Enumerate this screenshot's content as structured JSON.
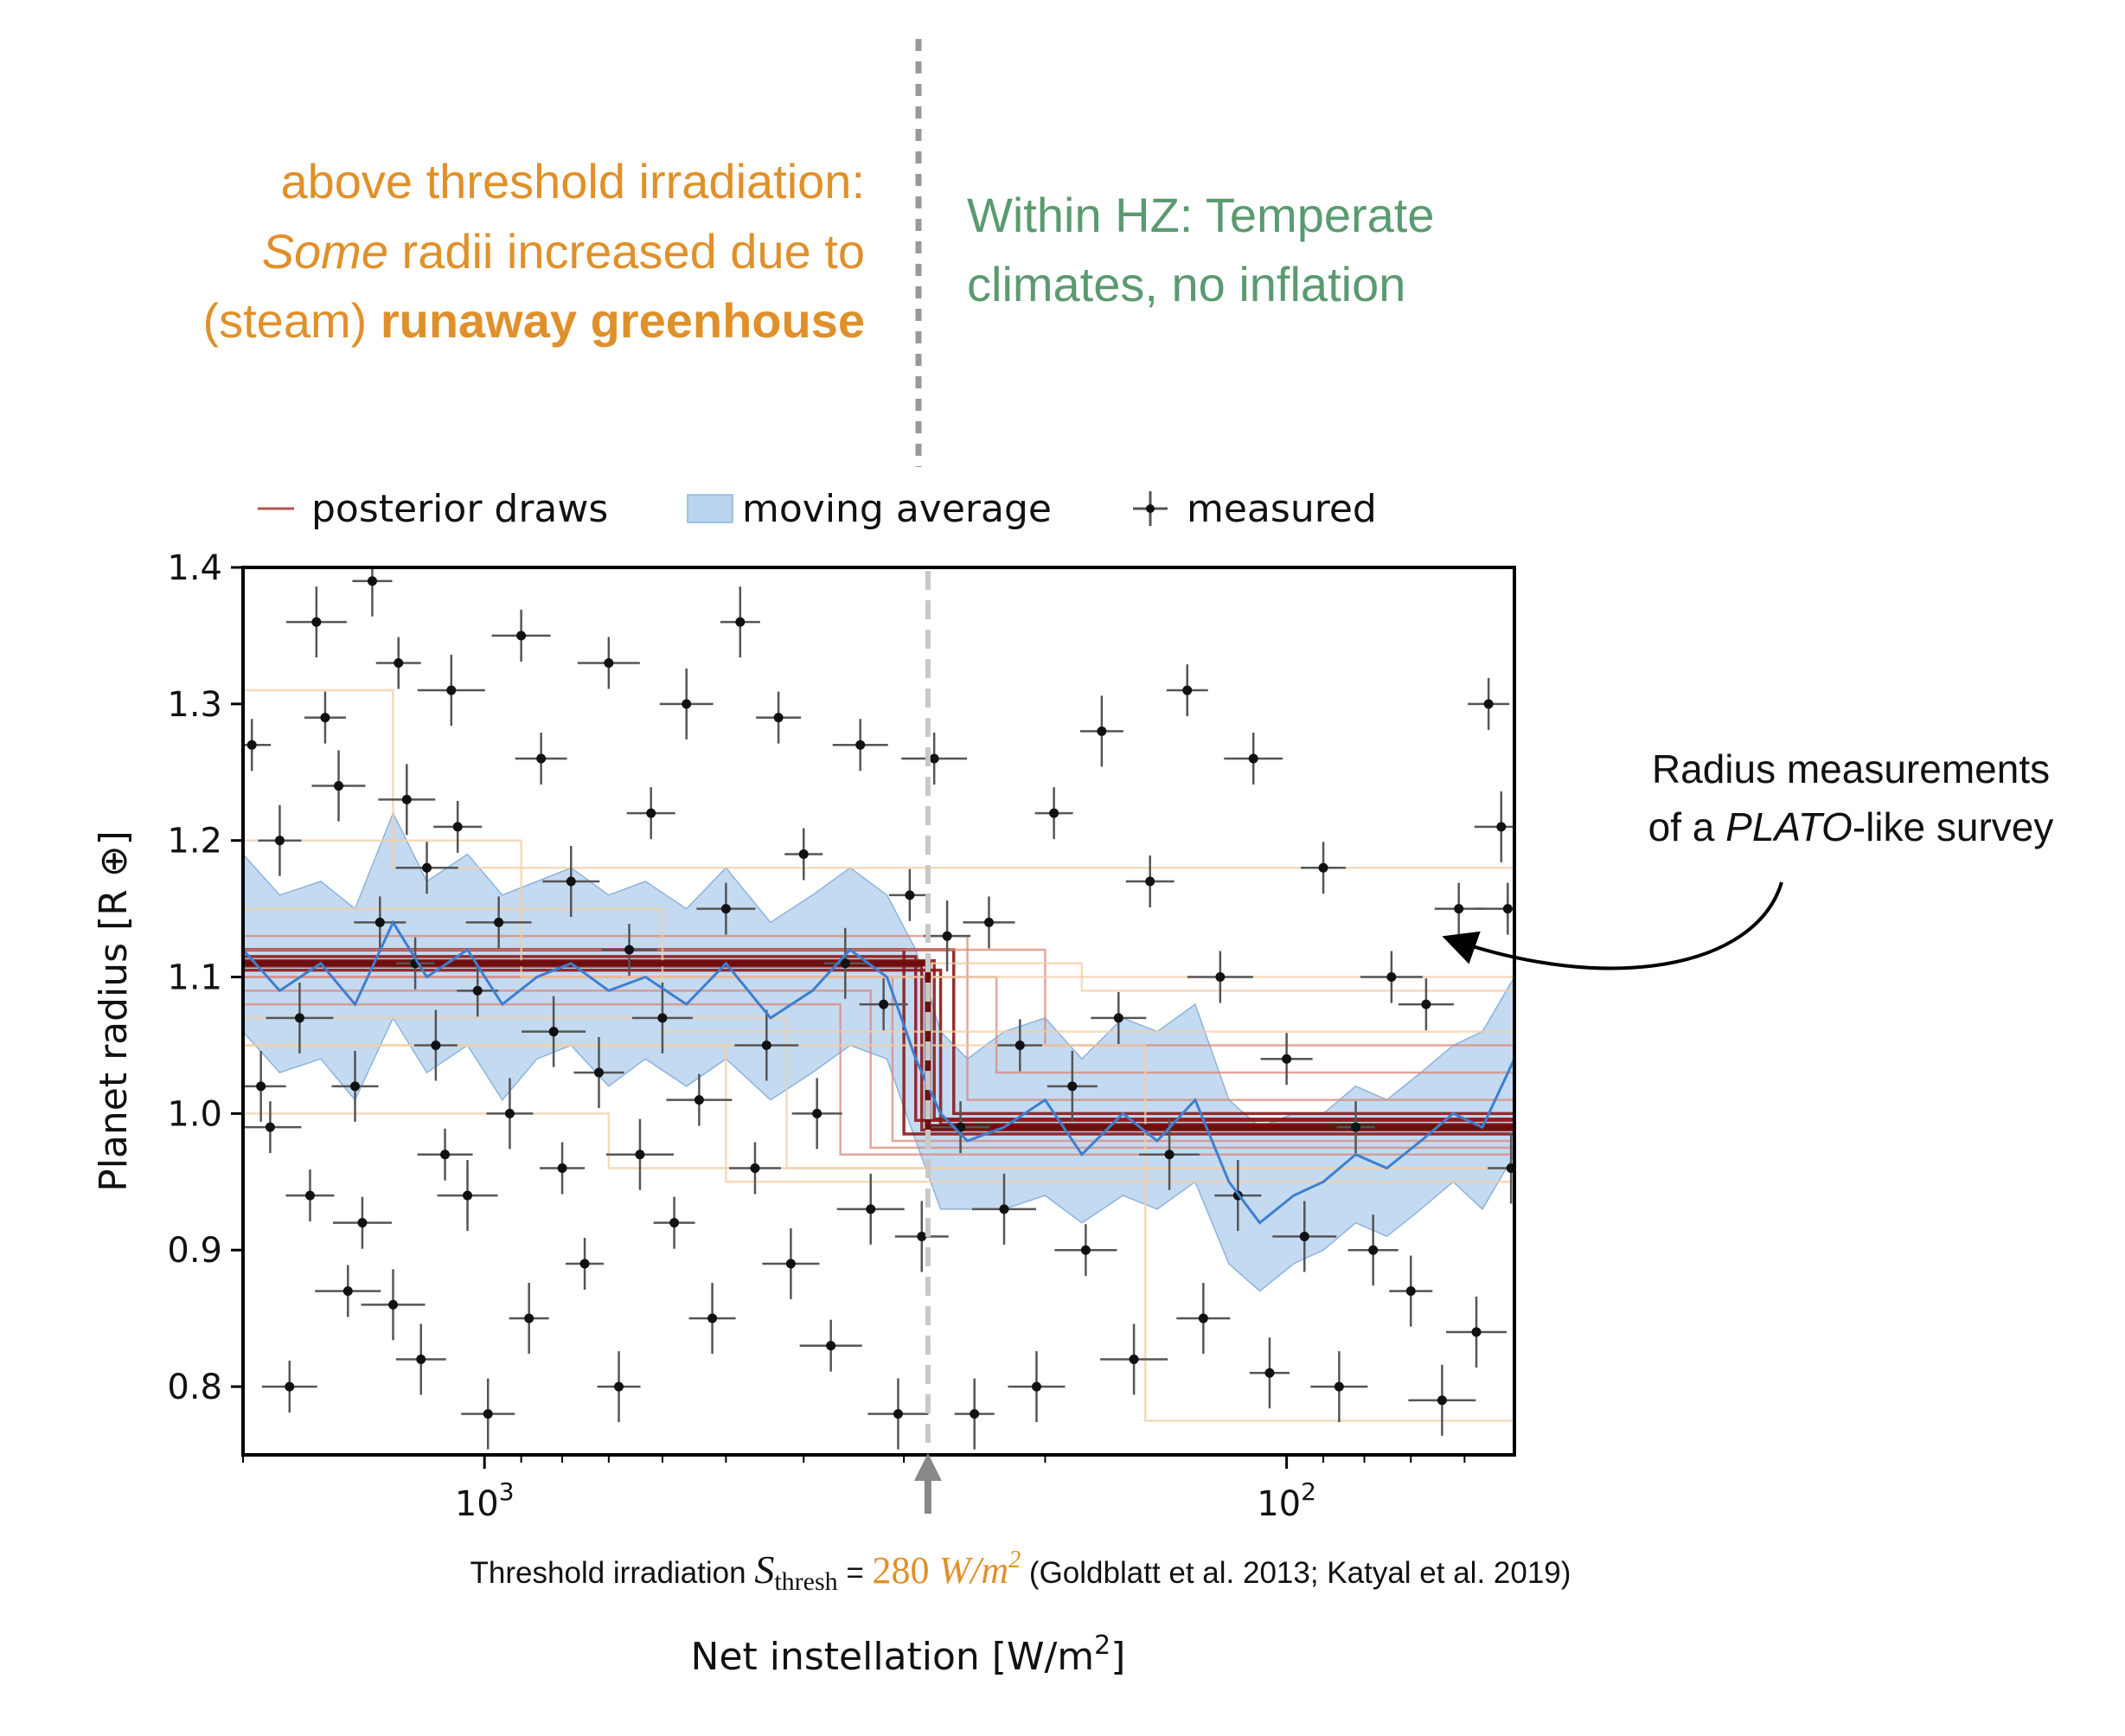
{
  "annotations": {
    "left_line1": "above threshold irradiation:",
    "left_line2_em": "Some",
    "left_line2_rest": " radii increased due to",
    "left_line3_plain": "(steam) ",
    "left_line3_bold": "runaway greenhouse",
    "right_line1": "Within HZ: Temperate",
    "right_line2": "climates, no inflation",
    "callout_line1": "Radius measurements",
    "callout_line2_pre": "of a ",
    "callout_line2_em": "PLATO",
    "callout_line2_post": "-like survey",
    "threshold_pre": "Threshold irradiation ",
    "threshold_symbol": "S",
    "threshold_sub": "thresh",
    "threshold_eq": " = ",
    "threshold_value": "280",
    "threshold_unit": " W/m",
    "threshold_unit_sup": "2",
    "threshold_refs": " (Goldblatt et al. 2013; Katyal et al. 2019)",
    "orange": "#e0902a",
    "green": "#5b9a70"
  },
  "chart_data": {
    "type": "scatter",
    "title": "",
    "xlabel": "Net instellation [W/m²]",
    "xlabel_pre": "Net instellation [W/m",
    "xlabel_sup": "2",
    "xlabel_post": "]",
    "ylabel": "Planet radius [R ⊕]",
    "x_scale": "log",
    "x_reversed": true,
    "xlim": [
      2000,
      52
    ],
    "ylim": [
      0.75,
      1.4
    ],
    "x_ticks": [
      {
        "value": 1000,
        "base": "10",
        "exp": "3"
      },
      {
        "value": 100,
        "base": "10",
        "exp": "2"
      }
    ],
    "y_ticks": [
      0.8,
      0.9,
      1.0,
      1.1,
      1.2,
      1.3,
      1.4
    ],
    "y_tick_labels": [
      "0.8",
      "0.9",
      "1.0",
      "1.1",
      "1.2",
      "1.3",
      "1.4"
    ],
    "threshold_x": 280,
    "hz_divider_x": 280,
    "legend": {
      "placement": "top",
      "entries": [
        "posterior draws",
        "moving average",
        "measured"
      ]
    },
    "step_model": {
      "x_threshold": 280,
      "radius_above": 1.11,
      "radius_below": 0.99
    },
    "posterior_draws": [
      {
        "threshold": 300,
        "high": 1.12,
        "low": 0.985
      },
      {
        "threshold": 280,
        "high": 1.11,
        "low": 0.99
      },
      {
        "threshold": 290,
        "high": 1.115,
        "low": 0.995
      },
      {
        "threshold": 270,
        "high": 1.105,
        "low": 0.992
      },
      {
        "threshold": 285,
        "high": 1.108,
        "low": 0.988
      },
      {
        "threshold": 275,
        "high": 1.112,
        "low": 0.996
      },
      {
        "threshold": 310,
        "high": 1.1,
        "low": 0.98
      },
      {
        "threshold": 260,
        "high": 1.12,
        "low": 1.0
      },
      {
        "threshold": 330,
        "high": 1.09,
        "low": 0.975
      },
      {
        "threshold": 250,
        "high": 1.13,
        "low": 1.01
      },
      {
        "threshold": 360,
        "high": 1.08,
        "low": 0.97
      },
      {
        "threshold": 230,
        "high": 1.1,
        "low": 1.03
      },
      {
        "threshold": 200,
        "high": 1.12,
        "low": 1.05
      },
      {
        "threshold": 420,
        "high": 1.07,
        "low": 0.96
      },
      {
        "threshold": 180,
        "high": 1.11,
        "low": 1.09
      },
      {
        "threshold": 600,
        "high": 1.15,
        "low": 1.06
      },
      {
        "threshold": 900,
        "high": 1.2,
        "low": 1.1
      },
      {
        "threshold": 1300,
        "high": 1.31,
        "low": 1.18
      },
      {
        "threshold": 500,
        "high": 1.05,
        "low": 0.95
      },
      {
        "threshold": 150,
        "high": 1.05,
        "low": 0.775
      },
      {
        "threshold": 700,
        "high": 1.0,
        "low": 0.96
      }
    ],
    "moving_average": [
      {
        "x": 2000,
        "y": 1.12,
        "lo": 1.06,
        "hi": 1.19
      },
      {
        "x": 1800,
        "y": 1.09,
        "lo": 1.03,
        "hi": 1.16
      },
      {
        "x": 1600,
        "y": 1.11,
        "lo": 1.04,
        "hi": 1.17
      },
      {
        "x": 1450,
        "y": 1.08,
        "lo": 1.01,
        "hi": 1.15
      },
      {
        "x": 1300,
        "y": 1.14,
        "lo": 1.07,
        "hi": 1.22
      },
      {
        "x": 1180,
        "y": 1.1,
        "lo": 1.03,
        "hi": 1.17
      },
      {
        "x": 1050,
        "y": 1.12,
        "lo": 1.05,
        "hi": 1.19
      },
      {
        "x": 950,
        "y": 1.08,
        "lo": 1.01,
        "hi": 1.16
      },
      {
        "x": 860,
        "y": 1.1,
        "lo": 1.04,
        "hi": 1.17
      },
      {
        "x": 780,
        "y": 1.11,
        "lo": 1.05,
        "hi": 1.18
      },
      {
        "x": 700,
        "y": 1.09,
        "lo": 1.02,
        "hi": 1.16
      },
      {
        "x": 630,
        "y": 1.1,
        "lo": 1.04,
        "hi": 1.17
      },
      {
        "x": 560,
        "y": 1.08,
        "lo": 1.02,
        "hi": 1.15
      },
      {
        "x": 500,
        "y": 1.11,
        "lo": 1.04,
        "hi": 1.18
      },
      {
        "x": 440,
        "y": 1.07,
        "lo": 1.01,
        "hi": 1.14
      },
      {
        "x": 390,
        "y": 1.09,
        "lo": 1.03,
        "hi": 1.16
      },
      {
        "x": 350,
        "y": 1.12,
        "lo": 1.05,
        "hi": 1.18
      },
      {
        "x": 315,
        "y": 1.1,
        "lo": 1.04,
        "hi": 1.16
      },
      {
        "x": 290,
        "y": 1.04,
        "lo": 0.98,
        "hi": 1.12
      },
      {
        "x": 270,
        "y": 1.0,
        "lo": 0.93,
        "hi": 1.06
      },
      {
        "x": 250,
        "y": 0.98,
        "lo": 0.93,
        "hi": 1.04
      },
      {
        "x": 225,
        "y": 0.99,
        "lo": 0.93,
        "hi": 1.06
      },
      {
        "x": 200,
        "y": 1.01,
        "lo": 0.94,
        "hi": 1.07
      },
      {
        "x": 180,
        "y": 0.97,
        "lo": 0.92,
        "hi": 1.04
      },
      {
        "x": 160,
        "y": 1.0,
        "lo": 0.94,
        "hi": 1.07
      },
      {
        "x": 145,
        "y": 0.98,
        "lo": 0.93,
        "hi": 1.06
      },
      {
        "x": 130,
        "y": 1.01,
        "lo": 0.95,
        "hi": 1.08
      },
      {
        "x": 118,
        "y": 0.95,
        "lo": 0.89,
        "hi": 1.01
      },
      {
        "x": 108,
        "y": 0.92,
        "lo": 0.87,
        "hi": 0.99
      },
      {
        "x": 98,
        "y": 0.94,
        "lo": 0.89,
        "hi": 1.0
      },
      {
        "x": 90,
        "y": 0.95,
        "lo": 0.9,
        "hi": 1.0
      },
      {
        "x": 82,
        "y": 0.97,
        "lo": 0.92,
        "hi": 1.02
      },
      {
        "x": 75,
        "y": 0.96,
        "lo": 0.91,
        "hi": 1.01
      },
      {
        "x": 68,
        "y": 0.98,
        "lo": 0.93,
        "hi": 1.03
      },
      {
        "x": 62,
        "y": 1.0,
        "lo": 0.95,
        "hi": 1.05
      },
      {
        "x": 57,
        "y": 0.99,
        "lo": 0.93,
        "hi": 1.06
      },
      {
        "x": 52,
        "y": 1.04,
        "lo": 0.97,
        "hi": 1.1
      }
    ],
    "measured": [
      {
        "x": 1950,
        "y": 1.27
      },
      {
        "x": 1900,
        "y": 1.02
      },
      {
        "x": 1850,
        "y": 0.99
      },
      {
        "x": 1800,
        "y": 1.2
      },
      {
        "x": 1750,
        "y": 0.8
      },
      {
        "x": 1700,
        "y": 1.07
      },
      {
        "x": 1650,
        "y": 0.94
      },
      {
        "x": 1620,
        "y": 1.36
      },
      {
        "x": 1580,
        "y": 1.29
      },
      {
        "x": 1520,
        "y": 1.24
      },
      {
        "x": 1480,
        "y": 0.87
      },
      {
        "x": 1450,
        "y": 1.02
      },
      {
        "x": 1420,
        "y": 0.92
      },
      {
        "x": 1380,
        "y": 1.39
      },
      {
        "x": 1350,
        "y": 1.14
      },
      {
        "x": 1300,
        "y": 0.86
      },
      {
        "x": 1280,
        "y": 1.33
      },
      {
        "x": 1250,
        "y": 1.23
      },
      {
        "x": 1220,
        "y": 1.11
      },
      {
        "x": 1200,
        "y": 0.82
      },
      {
        "x": 1180,
        "y": 1.18
      },
      {
        "x": 1150,
        "y": 1.05
      },
      {
        "x": 1120,
        "y": 0.97
      },
      {
        "x": 1100,
        "y": 1.31
      },
      {
        "x": 1080,
        "y": 1.21
      },
      {
        "x": 1050,
        "y": 0.94
      },
      {
        "x": 1020,
        "y": 1.09
      },
      {
        "x": 990,
        "y": 0.78
      },
      {
        "x": 960,
        "y": 1.14
      },
      {
        "x": 930,
        "y": 1.0
      },
      {
        "x": 900,
        "y": 1.35
      },
      {
        "x": 880,
        "y": 0.85
      },
      {
        "x": 850,
        "y": 1.26
      },
      {
        "x": 820,
        "y": 1.06
      },
      {
        "x": 800,
        "y": 0.96
      },
      {
        "x": 780,
        "y": 1.17
      },
      {
        "x": 750,
        "y": 0.89
      },
      {
        "x": 720,
        "y": 1.03
      },
      {
        "x": 700,
        "y": 1.33
      },
      {
        "x": 680,
        "y": 0.8
      },
      {
        "x": 660,
        "y": 1.12
      },
      {
        "x": 640,
        "y": 0.97
      },
      {
        "x": 620,
        "y": 1.22
      },
      {
        "x": 600,
        "y": 1.07
      },
      {
        "x": 580,
        "y": 0.92
      },
      {
        "x": 560,
        "y": 1.3
      },
      {
        "x": 540,
        "y": 1.01
      },
      {
        "x": 520,
        "y": 0.85
      },
      {
        "x": 500,
        "y": 1.15
      },
      {
        "x": 480,
        "y": 1.36
      },
      {
        "x": 460,
        "y": 0.96
      },
      {
        "x": 445,
        "y": 1.05
      },
      {
        "x": 430,
        "y": 1.29
      },
      {
        "x": 415,
        "y": 0.89
      },
      {
        "x": 400,
        "y": 1.19
      },
      {
        "x": 385,
        "y": 1.0
      },
      {
        "x": 370,
        "y": 0.83
      },
      {
        "x": 355,
        "y": 1.11
      },
      {
        "x": 340,
        "y": 1.27
      },
      {
        "x": 330,
        "y": 0.93
      },
      {
        "x": 318,
        "y": 1.08
      },
      {
        "x": 305,
        "y": 0.78
      },
      {
        "x": 295,
        "y": 1.16
      },
      {
        "x": 285,
        "y": 0.91
      },
      {
        "x": 275,
        "y": 1.26
      },
      {
        "x": 265,
        "y": 1.13
      },
      {
        "x": 255,
        "y": 0.99
      },
      {
        "x": 245,
        "y": 0.78
      },
      {
        "x": 235,
        "y": 1.14
      },
      {
        "x": 225,
        "y": 0.93
      },
      {
        "x": 215,
        "y": 1.05
      },
      {
        "x": 205,
        "y": 0.8
      },
      {
        "x": 195,
        "y": 1.22
      },
      {
        "x": 185,
        "y": 1.02
      },
      {
        "x": 178,
        "y": 0.9
      },
      {
        "x": 170,
        "y": 1.28
      },
      {
        "x": 162,
        "y": 1.07
      },
      {
        "x": 155,
        "y": 0.82
      },
      {
        "x": 148,
        "y": 1.17
      },
      {
        "x": 140,
        "y": 0.97
      },
      {
        "x": 133,
        "y": 1.31
      },
      {
        "x": 127,
        "y": 0.85
      },
      {
        "x": 121,
        "y": 1.1
      },
      {
        "x": 115,
        "y": 0.94
      },
      {
        "x": 110,
        "y": 1.26
      },
      {
        "x": 105,
        "y": 0.81
      },
      {
        "x": 100,
        "y": 1.04
      },
      {
        "x": 95,
        "y": 0.91
      },
      {
        "x": 90,
        "y": 1.18
      },
      {
        "x": 86,
        "y": 0.8
      },
      {
        "x": 82,
        "y": 0.99
      },
      {
        "x": 78,
        "y": 0.9
      },
      {
        "x": 74,
        "y": 1.1
      },
      {
        "x": 70,
        "y": 0.87
      },
      {
        "x": 67,
        "y": 1.08
      },
      {
        "x": 64,
        "y": 0.79
      },
      {
        "x": 61,
        "y": 1.15
      },
      {
        "x": 58,
        "y": 0.84
      },
      {
        "x": 56,
        "y": 1.3
      },
      {
        "x": 54,
        "y": 1.21
      },
      {
        "x": 53,
        "y": 1.15
      },
      {
        "x": 52.5,
        "y": 0.96
      }
    ]
  }
}
